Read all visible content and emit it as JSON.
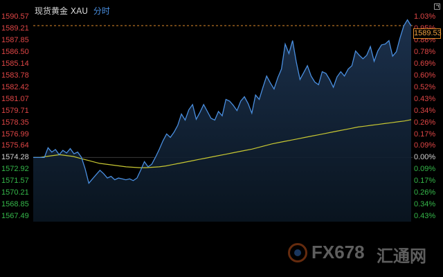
{
  "header": {
    "instrument": "现货黄金",
    "symbol": "XAU",
    "mode": "分时"
  },
  "current_price": "1589.53",
  "price_labels": [
    "1590.57",
    "1589.21",
    "1587.85",
    "1586.50",
    "1585.14",
    "1583.78",
    "1582.42",
    "1581.07",
    "1579.71",
    "1578.35",
    "1576.99",
    "1575.64",
    "1574.28",
    "1572.92",
    "1571.57",
    "1570.21",
    "1568.85",
    "1567.49"
  ],
  "percent_labels": [
    "1.03%",
    "0.95%",
    "0.86%",
    "0.78%",
    "0.69%",
    "0.60%",
    "0.52%",
    "0.43%",
    "0.34%",
    "0.26%",
    "0.17%",
    "0.09%",
    "0.00%",
    "0.09%",
    "0.17%",
    "0.26%",
    "0.34%",
    "0.43%"
  ],
  "watermark": {
    "brand": "FX678",
    "cn": "汇通网"
  },
  "colors": {
    "up": "#e04646",
    "down": "#35b84a",
    "price_line": "#4a8fe0",
    "avg_line": "#c8c832",
    "current_price": "#e08a2a"
  },
  "chart_data": {
    "type": "line",
    "title": "现货黄金 XAU 分时",
    "xlabel": "",
    "ylabel": "",
    "ylim": [
      1567.49,
      1590.57
    ],
    "reference_price": 1574.28,
    "series": [
      {
        "name": "price",
        "values": [
          1574.28,
          1574.28,
          1574.28,
          1574.28,
          1575.4,
          1574.9,
          1575.2,
          1574.6,
          1575.1,
          1574.8,
          1575.3,
          1574.7,
          1574.9,
          1574.3,
          1573.0,
          1571.3,
          1571.8,
          1572.3,
          1572.8,
          1572.4,
          1571.9,
          1572.1,
          1571.7,
          1571.9,
          1571.8,
          1571.7,
          1571.8,
          1571.6,
          1571.9,
          1572.8,
          1573.8,
          1573.2,
          1573.5,
          1574.3,
          1575.2,
          1576.2,
          1577.0,
          1576.6,
          1577.2,
          1578.0,
          1579.3,
          1578.6,
          1579.8,
          1580.4,
          1578.7,
          1579.5,
          1580.4,
          1579.6,
          1578.8,
          1578.6,
          1579.6,
          1579.1,
          1581.0,
          1580.8,
          1580.3,
          1579.7,
          1580.8,
          1581.3,
          1580.5,
          1579.4,
          1581.5,
          1581.0,
          1582.4,
          1583.7,
          1582.9,
          1582.2,
          1583.5,
          1584.5,
          1587.4,
          1586.3,
          1587.8,
          1585.3,
          1583.3,
          1584.1,
          1584.9,
          1583.7,
          1583.0,
          1582.7,
          1584.2,
          1584.0,
          1583.3,
          1582.4,
          1583.6,
          1584.2,
          1583.7,
          1584.5,
          1584.9,
          1586.6,
          1586.1,
          1585.7,
          1586.1,
          1587.1,
          1585.4,
          1586.6,
          1587.3,
          1587.4,
          1587.8,
          1586.0,
          1586.5,
          1588.1,
          1589.5,
          1590.2,
          1589.5
        ]
      },
      {
        "name": "average",
        "values": [
          1574.28,
          1574.28,
          1574.4,
          1574.5,
          1574.6,
          1574.5,
          1574.4,
          1574.2,
          1574.0,
          1573.8,
          1573.6,
          1573.5,
          1573.4,
          1573.3,
          1573.2,
          1573.15,
          1573.1,
          1573.1,
          1573.15,
          1573.2,
          1573.3,
          1573.45,
          1573.6,
          1573.75,
          1573.9,
          1574.05,
          1574.2,
          1574.35,
          1574.5,
          1574.65,
          1574.8,
          1574.95,
          1575.1,
          1575.25,
          1575.45,
          1575.65,
          1575.85,
          1576.0,
          1576.15,
          1576.3,
          1576.45,
          1576.6,
          1576.75,
          1576.9,
          1577.05,
          1577.2,
          1577.35,
          1577.5,
          1577.65,
          1577.8,
          1577.9,
          1578.0,
          1578.1,
          1578.2,
          1578.3,
          1578.4,
          1578.5,
          1578.65
        ]
      }
    ]
  }
}
